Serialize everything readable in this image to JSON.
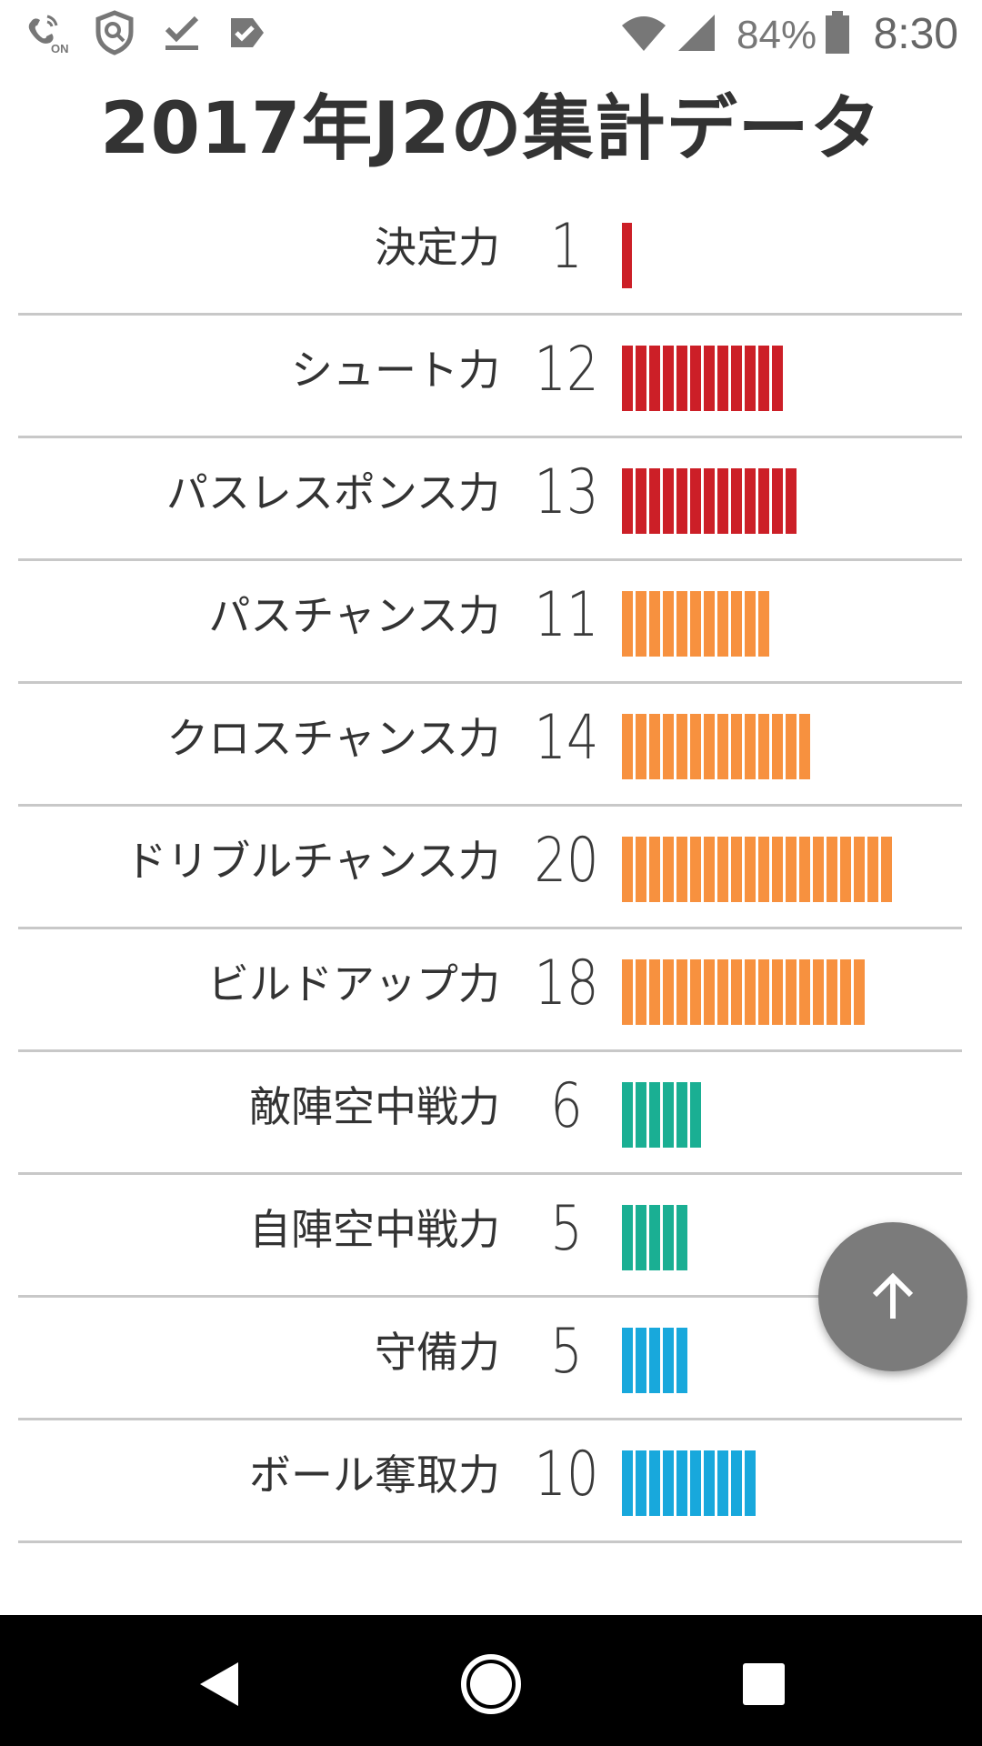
{
  "status_bar": {
    "icons_left": [
      "wifi-calling-on-icon",
      "security-shield-icon",
      "download-done-icon",
      "task-check-icon"
    ],
    "icons_right": [
      "wifi-icon",
      "cellular-signal-icon",
      "battery-icon"
    ],
    "battery_percent": "84%",
    "time": "8:30"
  },
  "page": {
    "title": "2017年J2の集計データ"
  },
  "colors": {
    "red": "#cc1f27",
    "orange": "#f7913f",
    "teal": "#1aaf93",
    "blue": "#18a8dc"
  },
  "stats": [
    {
      "label": "決定力",
      "value": "1",
      "count": 1,
      "color": "red"
    },
    {
      "label": "シュート力",
      "value": "12",
      "count": 12,
      "color": "red"
    },
    {
      "label": "パスレスポンス力",
      "value": "13",
      "count": 13,
      "color": "red"
    },
    {
      "label": "パスチャンス力",
      "value": "11",
      "count": 11,
      "color": "orange"
    },
    {
      "label": "クロスチャンス力",
      "value": "14",
      "count": 14,
      "color": "orange"
    },
    {
      "label": "ドリブルチャンス力",
      "value": "20",
      "count": 20,
      "color": "orange"
    },
    {
      "label": "ビルドアップ力",
      "value": "18",
      "count": 18,
      "color": "orange"
    },
    {
      "label": "敵陣空中戦力",
      "value": "6",
      "count": 6,
      "color": "teal"
    },
    {
      "label": "自陣空中戦力",
      "value": "5",
      "count": 5,
      "color": "teal"
    },
    {
      "label": "守備力",
      "value": "5",
      "count": 5,
      "color": "blue"
    },
    {
      "label": "ボール奪取力",
      "value": "10",
      "count": 10,
      "color": "blue"
    }
  ],
  "fab": {
    "icon": "arrow-up-icon"
  },
  "nav_bar": {
    "buttons": [
      "back-icon",
      "home-icon",
      "recents-icon"
    ]
  }
}
